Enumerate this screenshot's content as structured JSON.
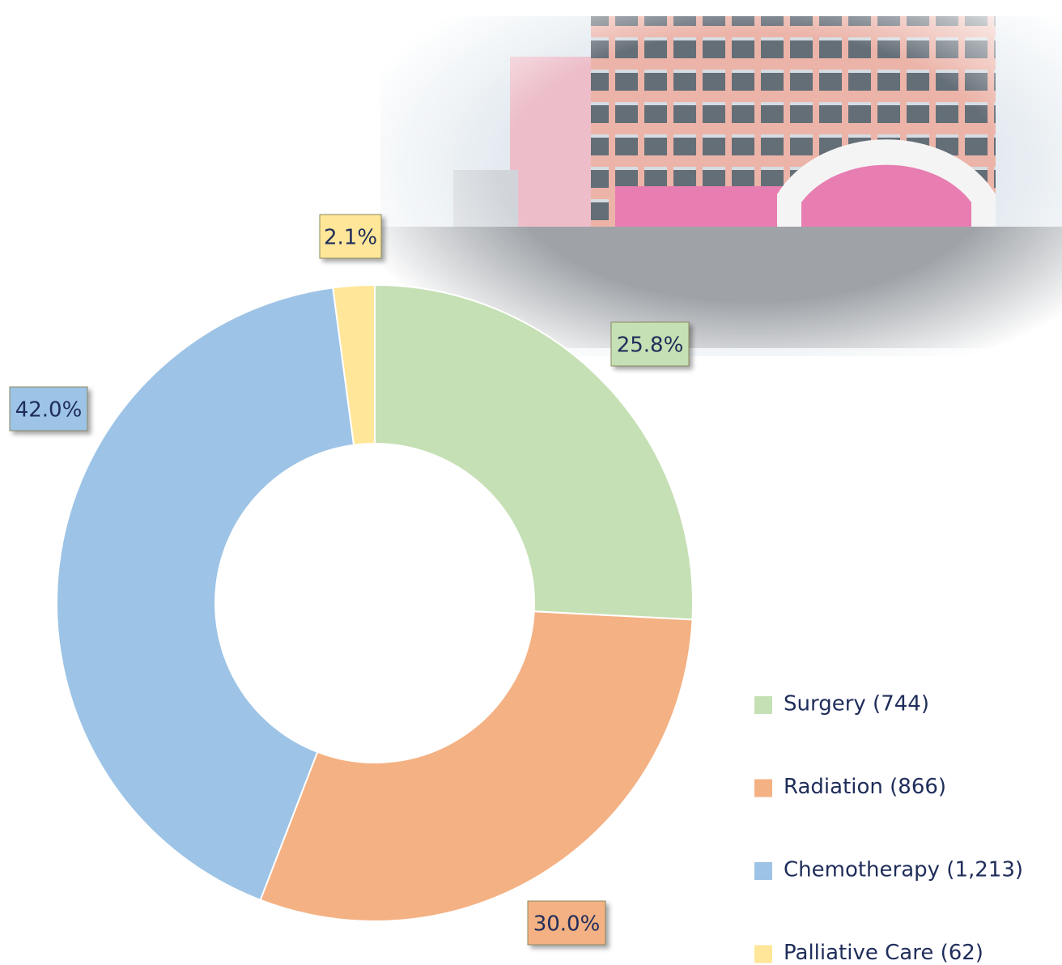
{
  "chart_data": {
    "type": "donut",
    "categories": [
      "Surgery (744)",
      "Radiation (866)",
      "Chemotherapy (1,213)",
      "Palliative Care (62)"
    ],
    "values": [
      25.8,
      30.0,
      42.0,
      2.1
    ],
    "value_labels": [
      "25.8%",
      "30.0%",
      "42.0%",
      "2.1%"
    ],
    "colors": [
      "#c5e0b4",
      "#f4b183",
      "#9dc3e6",
      "#ffe699"
    ],
    "legend": "bottom-right"
  }
}
